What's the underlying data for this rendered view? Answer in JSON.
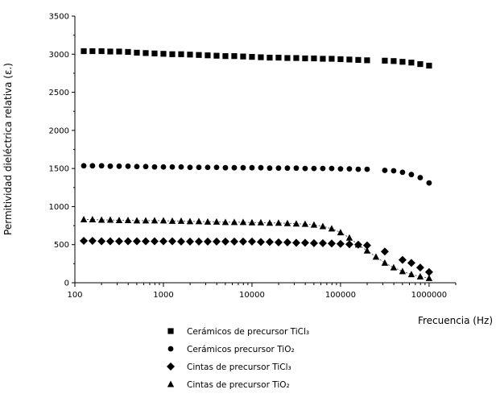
{
  "chart_data": {
    "type": "scatter",
    "xlabel": "Frecuencia (Hz)",
    "ylabel": "Permitividad dieléctrica relativa (ε.)",
    "xscale": "log",
    "xlim": [
      100,
      2000000
    ],
    "ylim": [
      0,
      3500
    ],
    "x_ticks": [
      100,
      1000,
      10000,
      100000,
      1000000
    ],
    "x_tick_labels": [
      "100",
      "1000",
      "10000",
      "100000",
      "1000000"
    ],
    "y_ticks": [
      0,
      500,
      1000,
      1500,
      2000,
      2500,
      3000,
      3500
    ],
    "y_tick_labels": [
      "0",
      "500",
      "1000",
      "1500",
      "2000",
      "2500",
      "3000",
      "3500"
    ],
    "grid": false,
    "legend_position": "below",
    "series": [
      {
        "name": "Cerámicos de precursor TiCl₃",
        "marker": "square",
        "color": "#000000",
        "x": [
          126,
          158,
          200,
          251,
          316,
          398,
          501,
          631,
          794,
          1000,
          1259,
          1585,
          1995,
          2512,
          3162,
          3981,
          5012,
          6310,
          7943,
          10000,
          12589,
          15849,
          19953,
          25119,
          31623,
          39811,
          50119,
          63096,
          79433,
          100000,
          125893,
          158489,
          199526,
          316228,
          398107,
          501187,
          630957,
          794328,
          1000000
        ],
        "y": [
          3040,
          3040,
          3040,
          3035,
          3035,
          3030,
          3020,
          3015,
          3010,
          3005,
          3000,
          3000,
          2995,
          2990,
          2985,
          2980,
          2975,
          2975,
          2970,
          2965,
          2960,
          2955,
          2955,
          2950,
          2950,
          2945,
          2945,
          2940,
          2940,
          2935,
          2930,
          2925,
          2920,
          2915,
          2910,
          2900,
          2890,
          2870,
          2850
        ]
      },
      {
        "name": "Cerámicos precursor TiO₂",
        "marker": "circle",
        "color": "#000000",
        "x": [
          126,
          158,
          200,
          251,
          316,
          398,
          501,
          631,
          794,
          1000,
          1259,
          1585,
          1995,
          2512,
          3162,
          3981,
          5012,
          6310,
          7943,
          10000,
          12589,
          15849,
          19953,
          25119,
          31623,
          39811,
          50119,
          63096,
          79433,
          100000,
          125893,
          158489,
          199526,
          316228,
          398107,
          501187,
          630957,
          794328,
          1000000
        ],
        "y": [
          1535,
          1535,
          1535,
          1530,
          1530,
          1530,
          1525,
          1525,
          1520,
          1520,
          1520,
          1520,
          1515,
          1515,
          1515,
          1515,
          1510,
          1510,
          1510,
          1510,
          1510,
          1505,
          1505,
          1505,
          1505,
          1500,
          1500,
          1500,
          1500,
          1495,
          1495,
          1490,
          1490,
          1475,
          1470,
          1450,
          1420,
          1380,
          1310
        ]
      },
      {
        "name": "Cintas de precursor TiCl₃",
        "marker": "diamond",
        "color": "#000000",
        "x": [
          126,
          158,
          200,
          251,
          316,
          398,
          501,
          631,
          794,
          1000,
          1259,
          1585,
          1995,
          2512,
          3162,
          3981,
          5012,
          6310,
          7943,
          10000,
          12589,
          15849,
          19953,
          25119,
          31623,
          39811,
          50119,
          63096,
          79433,
          100000,
          125893,
          158489,
          199526,
          316228,
          501187,
          630957,
          794328,
          1000000
        ],
        "y": [
          550,
          550,
          545,
          545,
          545,
          545,
          545,
          545,
          545,
          545,
          545,
          540,
          540,
          540,
          540,
          540,
          540,
          540,
          540,
          540,
          535,
          535,
          530,
          530,
          525,
          525,
          520,
          520,
          515,
          510,
          505,
          500,
          490,
          410,
          300,
          260,
          200,
          140
        ]
      },
      {
        "name": "Cintas de precursor TiO₂",
        "marker": "triangle",
        "color": "#000000",
        "x": [
          126,
          158,
          200,
          251,
          316,
          398,
          501,
          631,
          794,
          1000,
          1259,
          1585,
          1995,
          2512,
          3162,
          3981,
          5012,
          6310,
          7943,
          10000,
          12589,
          15849,
          19953,
          25119,
          31623,
          39811,
          50119,
          63096,
          79433,
          100000,
          125893,
          158489,
          199526,
          251189,
          316228,
          398107,
          501187,
          630957,
          794328,
          1000000
        ],
        "y": [
          830,
          830,
          825,
          825,
          820,
          820,
          815,
          815,
          815,
          815,
          810,
          810,
          805,
          805,
          800,
          800,
          795,
          795,
          795,
          790,
          790,
          785,
          785,
          780,
          775,
          770,
          760,
          740,
          710,
          660,
          590,
          500,
          420,
          340,
          260,
          200,
          150,
          110,
          80,
          60
        ]
      }
    ]
  }
}
